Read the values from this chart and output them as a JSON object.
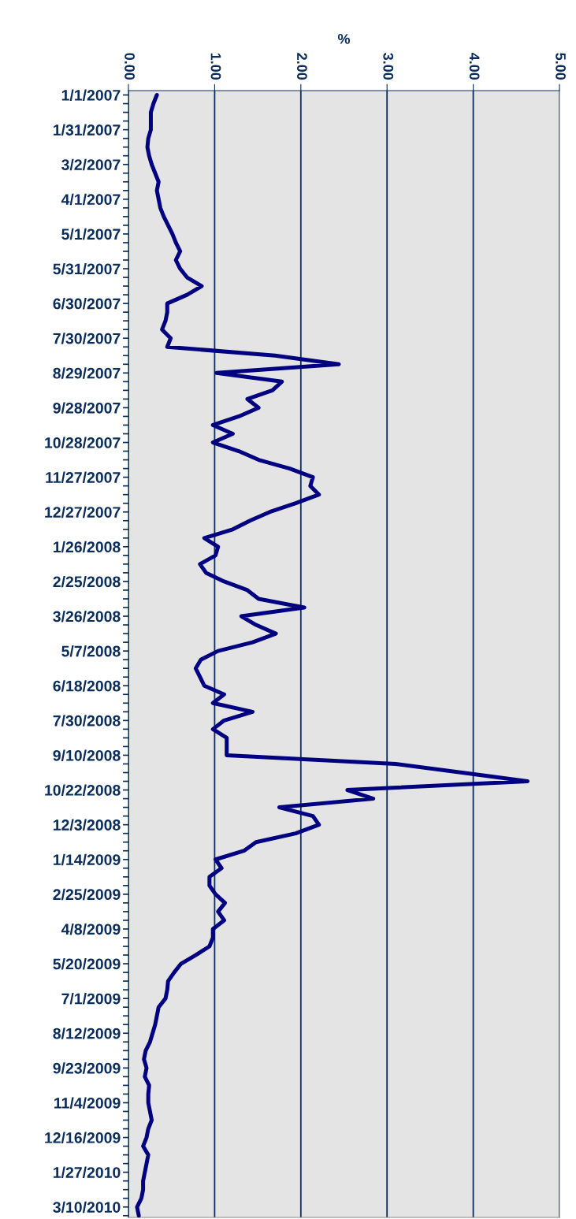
{
  "chart_data": {
    "type": "line",
    "orientation": "horizontal",
    "xlabel": "%",
    "categories": [
      "1/1/2007",
      null,
      null,
      null,
      "1/31/2007",
      null,
      null,
      null,
      "3/2/2007",
      null,
      null,
      null,
      "4/1/2007",
      null,
      null,
      null,
      "5/1/2007",
      null,
      null,
      null,
      "5/31/2007",
      null,
      null,
      null,
      "6/30/2007",
      null,
      null,
      null,
      "7/30/2007",
      null,
      null,
      null,
      "8/29/2007",
      null,
      null,
      null,
      "9/28/2007",
      null,
      null,
      null,
      "10/28/2007",
      null,
      null,
      null,
      "11/27/2007",
      null,
      null,
      null,
      "12/27/2007",
      null,
      null,
      null,
      "1/26/2008",
      null,
      null,
      null,
      "2/25/2008",
      null,
      null,
      null,
      "3/26/2008",
      null,
      null,
      null,
      "5/7/2008",
      null,
      null,
      null,
      "6/18/2008",
      null,
      null,
      null,
      "7/30/2008",
      null,
      null,
      null,
      "9/10/2008",
      null,
      null,
      null,
      "10/22/2008",
      null,
      null,
      null,
      "12/3/2008",
      null,
      null,
      null,
      "1/14/2009",
      null,
      null,
      null,
      "2/25/2009",
      null,
      null,
      null,
      "4/8/2009",
      null,
      null,
      null,
      "5/20/2009",
      null,
      null,
      null,
      "7/1/2009",
      null,
      null,
      null,
      "8/12/2009",
      null,
      null,
      null,
      "9/23/2009",
      null,
      null,
      null,
      "11/4/2009",
      null,
      null,
      null,
      "12/16/2009",
      null,
      null,
      null,
      "1/27/2010",
      null,
      null,
      null,
      "3/10/2010",
      null
    ],
    "series": [
      {
        "color": "#000080",
        "values": [
          0.33,
          0.29,
          0.26,
          0.26,
          0.26,
          0.23,
          0.22,
          0.24,
          0.27,
          0.31,
          0.35,
          0.33,
          0.35,
          0.37,
          0.41,
          0.46,
          0.51,
          0.55,
          0.6,
          0.55,
          0.6,
          0.68,
          0.85,
          0.68,
          0.45,
          0.45,
          0.43,
          0.39,
          0.49,
          0.45,
          1.7,
          2.44,
          1.02,
          1.78,
          1.67,
          1.38,
          1.51,
          1.28,
          0.98,
          1.21,
          0.98,
          1.28,
          1.51,
          1.87,
          2.14,
          2.11,
          2.21,
          1.94,
          1.64,
          1.41,
          1.21,
          0.88,
          1.04,
          1.01,
          0.83,
          0.9,
          1.11,
          1.38,
          1.51,
          2.04,
          1.31,
          1.48,
          1.71,
          1.44,
          1.04,
          0.84,
          0.78,
          0.83,
          0.88,
          1.11,
          0.98,
          1.44,
          1.11,
          0.98,
          1.14,
          1.14,
          1.14,
          3.1,
          3.87,
          4.63,
          2.54,
          2.84,
          1.75,
          2.14,
          2.21,
          1.94,
          1.48,
          1.34,
          1.01,
          1.08,
          0.94,
          0.94,
          1.01,
          1.12,
          1.04,
          1.11,
          0.98,
          0.98,
          0.94,
          0.78,
          0.61,
          0.53,
          0.46,
          0.45,
          0.43,
          0.35,
          0.33,
          0.31,
          0.28,
          0.25,
          0.2,
          0.18,
          0.21,
          0.19,
          0.24,
          0.23,
          0.23,
          0.25,
          0.27,
          0.23,
          0.21,
          0.17,
          0.23,
          0.21,
          0.19,
          0.17,
          0.17,
          0.15,
          0.1,
          0.12
        ]
      }
    ],
    "xlim": [
      0,
      5
    ],
    "xticks": [
      {
        "value": 0,
        "label": "0.00"
      },
      {
        "value": 1,
        "label": "1.00"
      },
      {
        "value": 2,
        "label": "2.00"
      },
      {
        "value": 3,
        "label": "3.00"
      },
      {
        "value": 4,
        "label": "4.00"
      },
      {
        "value": 5,
        "label": "5.00"
      }
    ],
    "grid": "x",
    "marker": "none",
    "line_style": "solid"
  }
}
